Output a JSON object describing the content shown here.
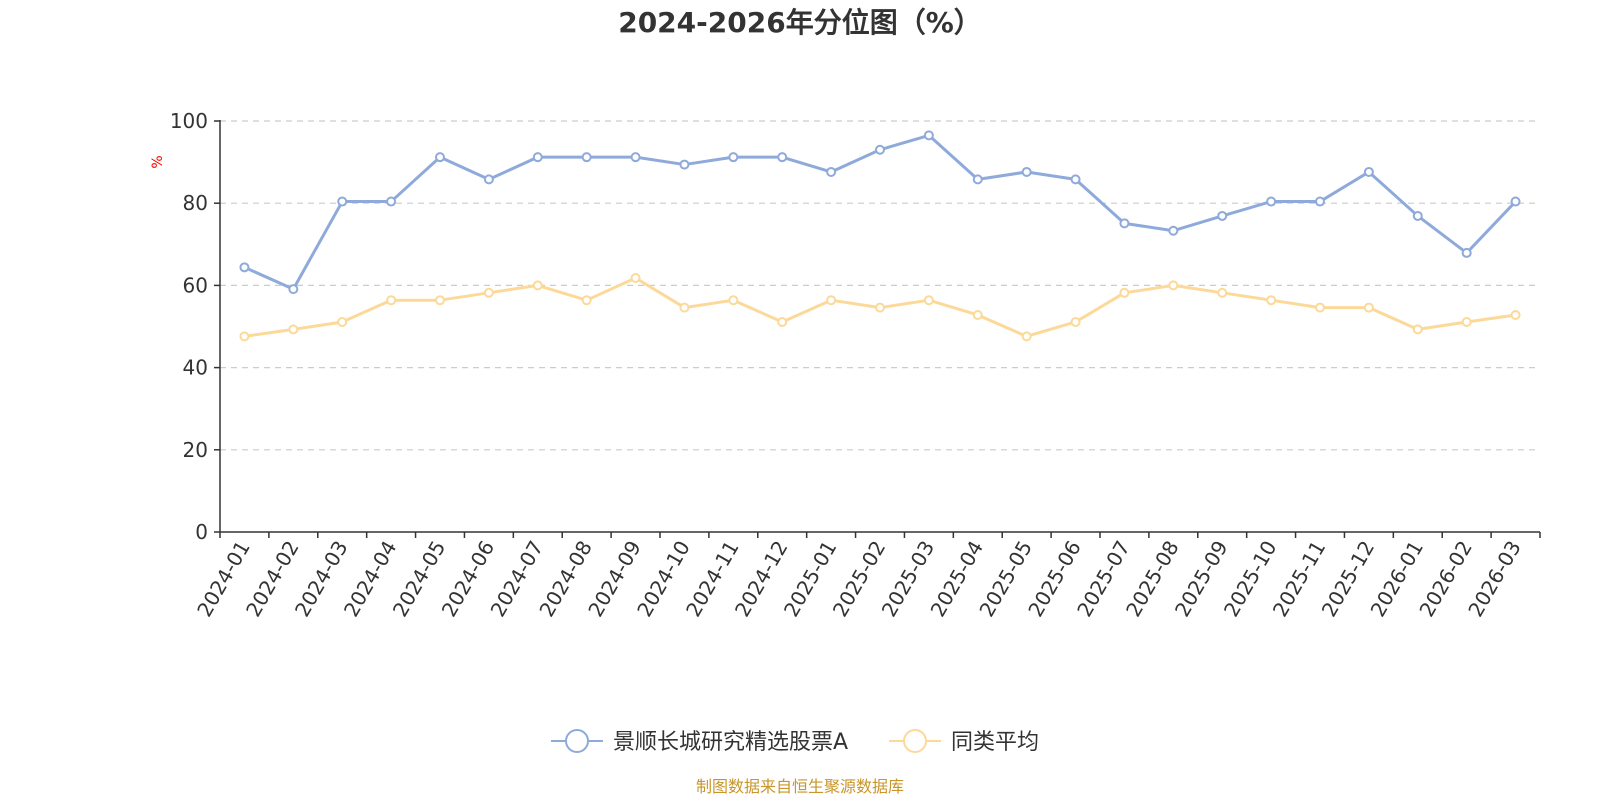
{
  "chart_data": {
    "type": "line",
    "title": "2024-2026年分位图（%）",
    "ylabel": "%",
    "ylim": [
      0,
      100
    ],
    "yticks": [
      0,
      20,
      40,
      60,
      80,
      100
    ],
    "grid": true,
    "legend_position": "bottom-center",
    "categories": [
      "2024-01",
      "2024-02",
      "2024-03",
      "2024-04",
      "2024-05",
      "2024-06",
      "2024-07",
      "2024-08",
      "2024-09",
      "2024-10",
      "2024-11",
      "2024-12",
      "2025-01",
      "2025-02",
      "2025-03",
      "2025-04",
      "2025-05",
      "2025-06",
      "2025-07",
      "2025-08",
      "2025-09",
      "2025-10",
      "2025-11",
      "2025-12",
      "2026-01",
      "2026-02",
      "2026-03"
    ],
    "series": [
      {
        "name": "景顺长城研究精选股票A",
        "color": "#8eaadb",
        "values": [
          64.4,
          59.1,
          80.4,
          80.4,
          91.2,
          85.8,
          91.2,
          91.2,
          91.2,
          89.4,
          91.2,
          91.2,
          87.6,
          93.0,
          96.5,
          85.8,
          87.6,
          85.8,
          75.1,
          73.3,
          76.9,
          80.4,
          80.4,
          87.6,
          76.9,
          67.9,
          80.4
        ]
      },
      {
        "name": "同类平均",
        "color": "#fcd999",
        "values": [
          47.6,
          49.3,
          51.1,
          56.4,
          56.4,
          58.2,
          60.0,
          56.4,
          61.8,
          54.6,
          56.4,
          51.1,
          56.4,
          54.6,
          56.4,
          52.8,
          47.6,
          51.1,
          58.2,
          60.0,
          58.2,
          56.4,
          54.6,
          54.6,
          49.3,
          51.1,
          52.8
        ]
      }
    ],
    "source": "制图数据来自恒生聚源数据库",
    "colors": {
      "axis": "#333333",
      "grid": "#cccccc",
      "ylabel": "#ff0000",
      "source": "#c8962a"
    }
  }
}
